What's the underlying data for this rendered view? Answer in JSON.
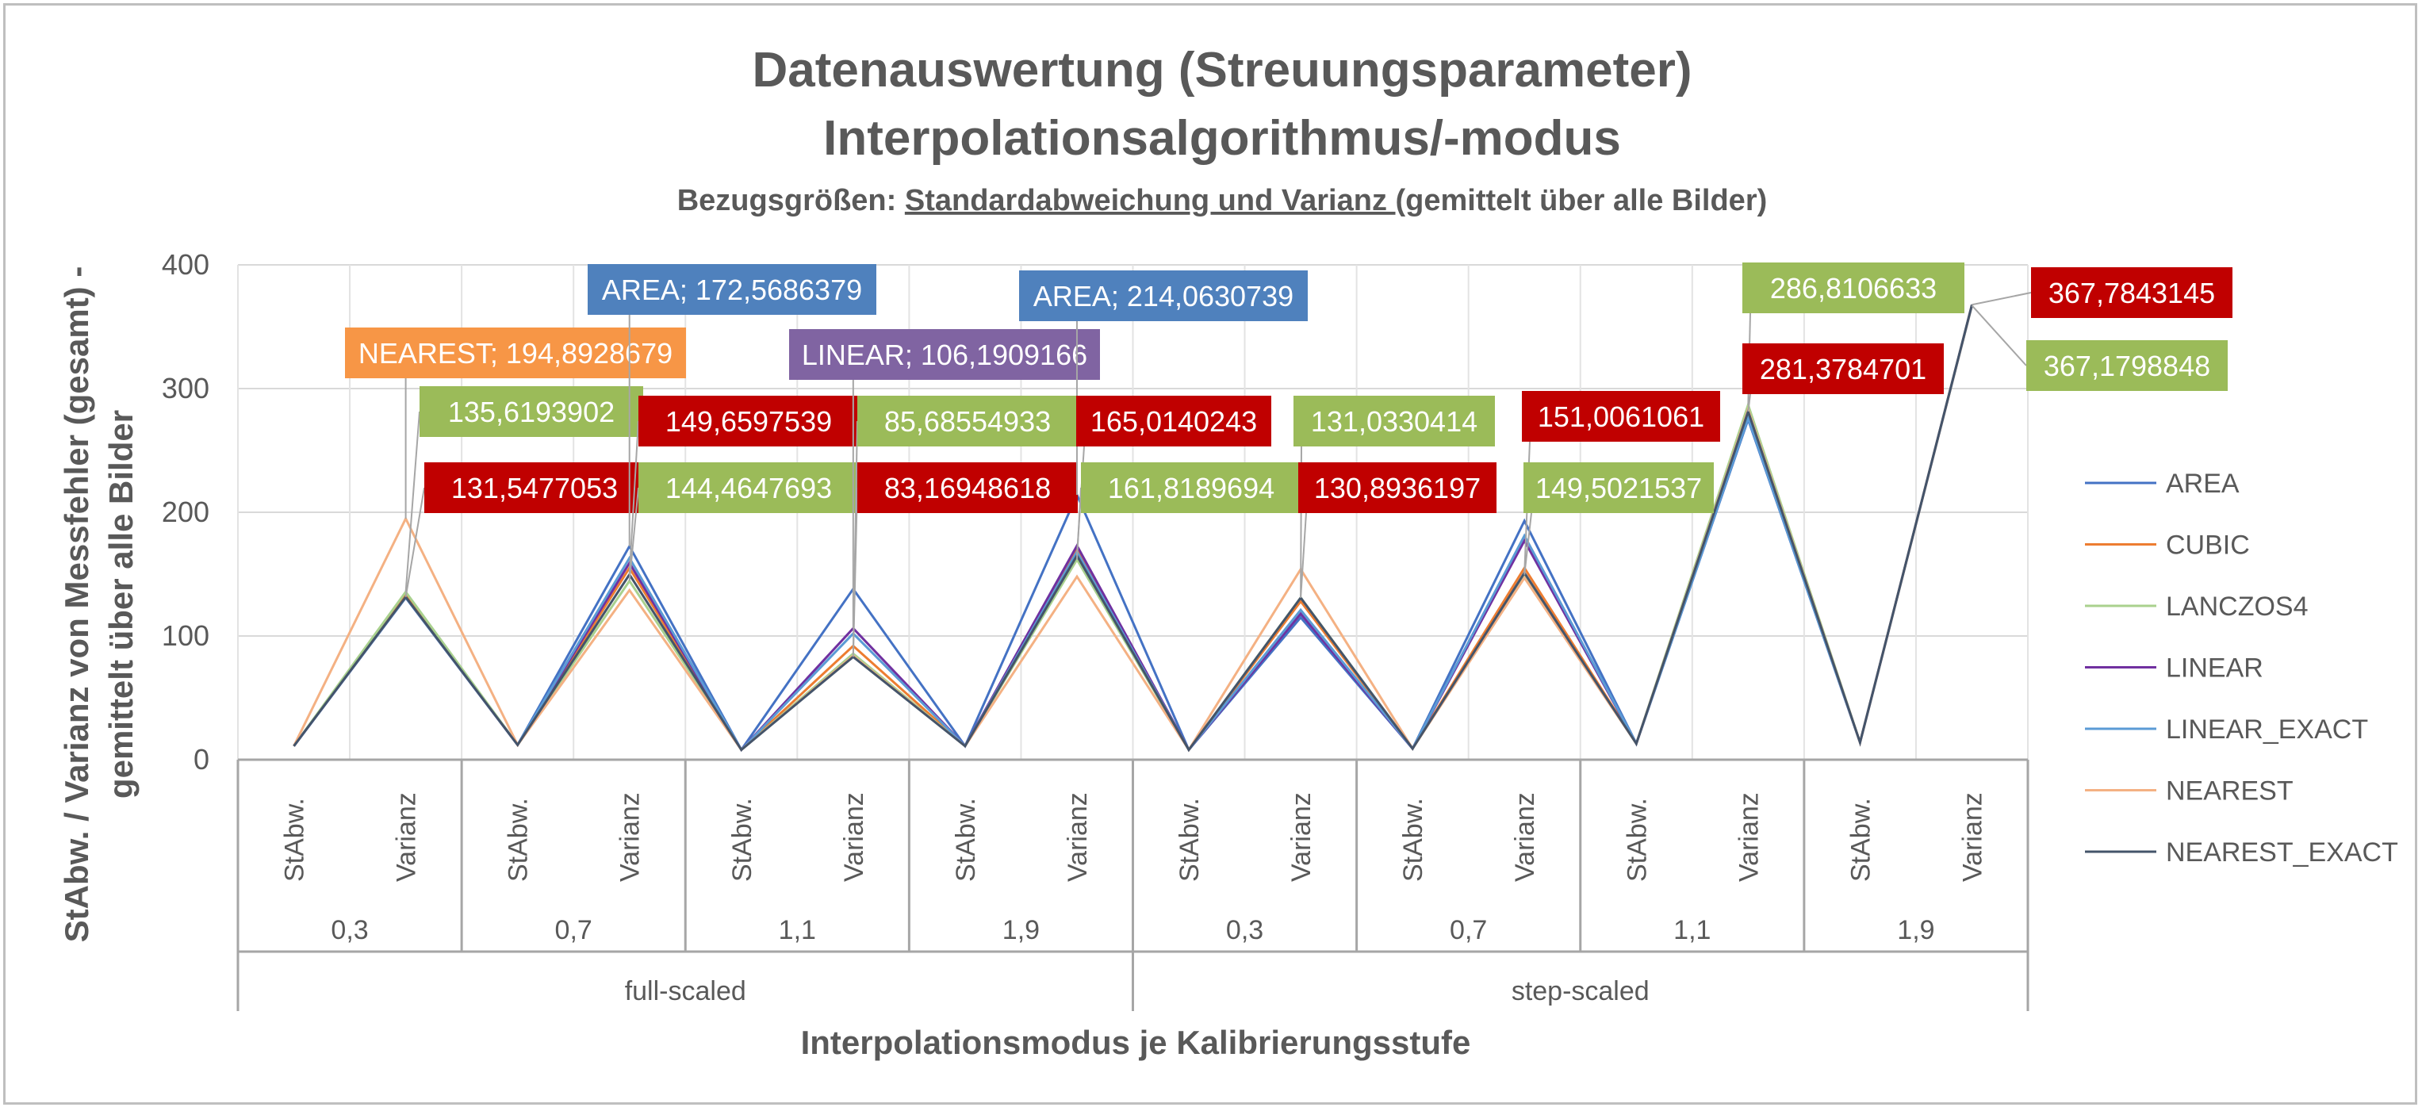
{
  "chart_data": {
    "type": "line",
    "title": "Datenauswertung (Streuungsparameter)",
    "title_line2": "Interpolationsalgorithmus/-modus",
    "subtitle_prefix": "Bezugsgrößen: ",
    "subtitle_underlined": "Standardabweichung und Varianz ",
    "subtitle_suffix": "(gemittelt über alle Bilder)",
    "ylabel_line1": "StAbw. / Varianz von Messfehler (gesamt) -",
    "ylabel_line2": "gemittelt über alle Bilder",
    "xlabel": "Interpolationsmodus je Kalibrierungsstufe",
    "ylim": [
      0,
      400
    ],
    "yticks": [
      "0",
      "100",
      "200",
      "300",
      "400"
    ],
    "grid": true,
    "legend_position": "right",
    "categories": [
      "StAbw.",
      "Varianz",
      "StAbw.",
      "Varianz",
      "StAbw.",
      "Varianz",
      "StAbw.",
      "Varianz",
      "StAbw.",
      "Varianz",
      "StAbw.",
      "Varianz",
      "StAbw.",
      "Varianz",
      "StAbw.",
      "Varianz"
    ],
    "level2": [
      "0,3",
      "0,7",
      "1,1",
      "1,9",
      "0,3",
      "0,7",
      "1,1",
      "1,9"
    ],
    "level3": [
      "full-scaled",
      "step-scaled"
    ],
    "series": [
      {
        "name": "AREA",
        "color": "#4472c4",
        "values": [
          11,
          131,
          12,
          172.57,
          8,
          138,
          11,
          214.06,
          8,
          115,
          9,
          193,
          13,
          275,
          14,
          367.5
        ]
      },
      {
        "name": "CUBIC",
        "color": "#ed7d31",
        "values": [
          11,
          134,
          12,
          155,
          8,
          92,
          11,
          170,
          8,
          128,
          9,
          155,
          13,
          280,
          14,
          367.4
        ]
      },
      {
        "name": "LANCZOS4",
        "color": "#a9d18e",
        "values": [
          11,
          135.62,
          12,
          144.46,
          8,
          85.69,
          11,
          161.82,
          8,
          131.03,
          9,
          149.5,
          13,
          286.81,
          14,
          367.18
        ]
      },
      {
        "name": "LINEAR",
        "color": "#7030a0",
        "values": [
          11,
          131,
          12,
          159,
          8,
          106.19,
          11,
          173,
          8,
          118,
          9,
          177,
          13,
          277,
          14,
          367.5
        ]
      },
      {
        "name": "LINEAR_EXACT",
        "color": "#5b9bd5",
        "values": [
          11,
          131,
          12,
          163,
          8,
          102,
          11,
          168,
          8,
          121,
          9,
          181,
          13,
          276,
          14,
          367.5
        ]
      },
      {
        "name": "NEAREST",
        "color": "#f4b183",
        "values": [
          11,
          194.89,
          12,
          137,
          8,
          84,
          11,
          148,
          8,
          154,
          9,
          147,
          13,
          283,
          14,
          367.6
        ]
      },
      {
        "name": "NEAREST_EXACT",
        "color": "#44546a",
        "values": [
          11,
          131.55,
          12,
          149.66,
          8,
          83.17,
          11,
          165.01,
          8,
          130.89,
          9,
          151.01,
          13,
          281.38,
          14,
          367.78
        ]
      }
    ],
    "annotations": [
      {
        "text": "NEAREST; 194,8928679",
        "color": "#f79646",
        "point": [
          1,
          194.89
        ]
      },
      {
        "text": "135,6193902",
        "color": "#9bbb59",
        "point": [
          1,
          135.62
        ]
      },
      {
        "text": "131,5477053",
        "color": "#c00000",
        "point": [
          1,
          131.55
        ]
      },
      {
        "text": "AREA; 172,5686379",
        "color": "#4f81bd",
        "point": [
          3,
          172.57
        ]
      },
      {
        "text": "149,6597539",
        "color": "#c00000",
        "point": [
          3,
          149.66
        ]
      },
      {
        "text": "144,4647693",
        "color": "#9bbb59",
        "point": [
          3,
          144.46
        ]
      },
      {
        "text": "LINEAR; 106,1909166",
        "color": "#8064a2",
        "point": [
          5,
          106.19
        ]
      },
      {
        "text": "85,68554933",
        "color": "#9bbb59",
        "point": [
          5,
          85.69
        ]
      },
      {
        "text": "83,16948618",
        "color": "#c00000",
        "point": [
          5,
          83.17
        ]
      },
      {
        "text": "AREA; 214,0630739",
        "color": "#4f81bd",
        "point": [
          7,
          214.06
        ]
      },
      {
        "text": "165,0140243",
        "color": "#c00000",
        "point": [
          7,
          165.01
        ]
      },
      {
        "text": "161,8189694",
        "color": "#9bbb59",
        "point": [
          7,
          161.82
        ]
      },
      {
        "text": "131,0330414",
        "color": "#9bbb59",
        "point": [
          9,
          131.03
        ]
      },
      {
        "text": "130,8936197",
        "color": "#c00000",
        "point": [
          9,
          130.89
        ]
      },
      {
        "text": "151,0061061",
        "color": "#c00000",
        "point": [
          11,
          151.01
        ]
      },
      {
        "text": "149,5021537",
        "color": "#9bbb59",
        "point": [
          11,
          149.5
        ]
      },
      {
        "text": "286,8106633",
        "color": "#9bbb59",
        "point": [
          13,
          286.81
        ]
      },
      {
        "text": "281,3784701",
        "color": "#c00000",
        "point": [
          13,
          281.38
        ]
      },
      {
        "text": "367,7843145",
        "color": "#c00000",
        "point": [
          15,
          367.78
        ]
      },
      {
        "text": "367,1798848",
        "color": "#9bbb59",
        "point": [
          15,
          367.18
        ]
      }
    ]
  }
}
